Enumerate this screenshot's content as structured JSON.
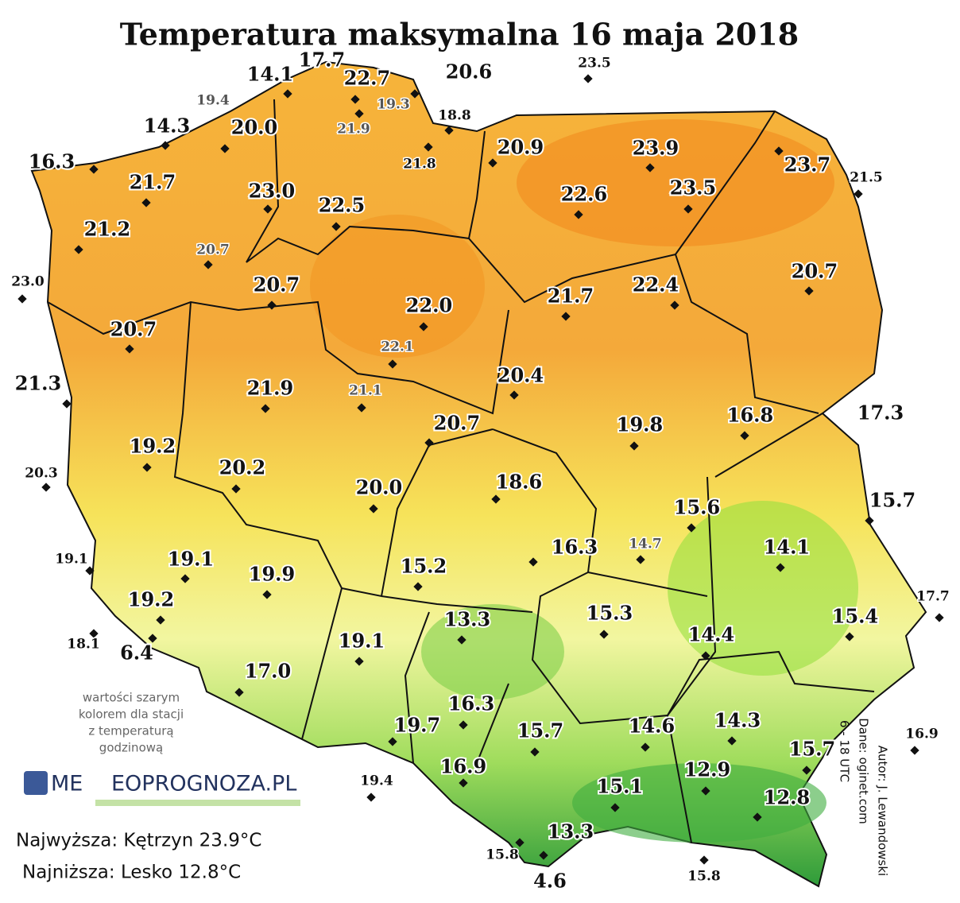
{
  "title": "Temperatura maksymalna 16 maja 2018",
  "stations": [
    {
      "label": "14.1",
      "style": "bold"
    },
    {
      "label": "17.7",
      "style": "bold"
    },
    {
      "label": "22.7",
      "style": "bold"
    },
    {
      "label": "19.3",
      "style": "gray"
    },
    {
      "label": "21.9",
      "style": "gray"
    },
    {
      "label": "20.6",
      "style": "bold"
    },
    {
      "label": "23.5",
      "style": "small"
    },
    {
      "label": "19.4",
      "style": "gray"
    },
    {
      "label": "18.8",
      "style": "small"
    },
    {
      "label": "14.3",
      "style": "bold"
    },
    {
      "label": "20.0",
      "style": "bold"
    },
    {
      "label": "21.8",
      "style": "small"
    },
    {
      "label": "20.9",
      "style": "bold"
    },
    {
      "label": "23.9",
      "style": "bold"
    },
    {
      "label": "23.7",
      "style": "bold"
    },
    {
      "label": "21.5",
      "style": "small"
    },
    {
      "label": "16.3",
      "style": "bold"
    },
    {
      "label": "21.7",
      "style": "bold"
    },
    {
      "label": "23.0",
      "style": "bold"
    },
    {
      "label": "22.5",
      "style": "bold"
    },
    {
      "label": "22.6",
      "style": "bold"
    },
    {
      "label": "23.5",
      "style": "bold"
    },
    {
      "label": "21.2",
      "style": "bold"
    },
    {
      "label": "20.7",
      "style": "gray"
    },
    {
      "label": "23.0",
      "style": "small"
    },
    {
      "label": "20.7",
      "style": "bold"
    },
    {
      "label": "22.4",
      "style": "bold"
    },
    {
      "label": "20.7",
      "style": "bold"
    },
    {
      "label": "22.0",
      "style": "bold"
    },
    {
      "label": "21.7",
      "style": "bold"
    },
    {
      "label": "20.7",
      "style": "bold"
    },
    {
      "label": "22.1",
      "style": "gray"
    },
    {
      "label": "21.3",
      "style": "bold"
    },
    {
      "label": "20.4",
      "style": "bold"
    },
    {
      "label": "21.9",
      "style": "bold"
    },
    {
      "label": "21.1",
      "style": "gray"
    },
    {
      "label": "20.7",
      "style": "bold"
    },
    {
      "label": "19.8",
      "style": "bold"
    },
    {
      "label": "16.8",
      "style": "bold"
    },
    {
      "label": "17.3",
      "style": "bold"
    },
    {
      "label": "19.2",
      "style": "bold"
    },
    {
      "label": "20.3",
      "style": "small"
    },
    {
      "label": "20.2",
      "style": "bold"
    },
    {
      "label": "20.0",
      "style": "bold"
    },
    {
      "label": "18.6",
      "style": "bold"
    },
    {
      "label": "15.7",
      "style": "bold"
    },
    {
      "label": "15.6",
      "style": "bold"
    },
    {
      "label": "16.3",
      "style": "bold"
    },
    {
      "label": "14.7",
      "style": "gray"
    },
    {
      "label": "14.1",
      "style": "bold"
    },
    {
      "label": "19.1",
      "style": "small"
    },
    {
      "label": "19.1",
      "style": "bold"
    },
    {
      "label": "19.9",
      "style": "bold"
    },
    {
      "label": "15.2",
      "style": "bold"
    },
    {
      "label": "17.7",
      "style": "small"
    },
    {
      "label": "13.3",
      "style": "bold"
    },
    {
      "label": "15.3",
      "style": "bold"
    },
    {
      "label": "15.4",
      "style": "bold"
    },
    {
      "label": "19.2",
      "style": "bold"
    },
    {
      "label": "14.4",
      "style": "bold"
    },
    {
      "label": "18.1",
      "style": "small"
    },
    {
      "label": "6.4",
      "style": "bold"
    },
    {
      "label": "19.1",
      "style": "bold"
    },
    {
      "label": "17.0",
      "style": "bold"
    },
    {
      "label": "16.3",
      "style": "bold"
    },
    {
      "label": "19.7",
      "style": "bold"
    },
    {
      "label": "15.7",
      "style": "bold"
    },
    {
      "label": "14.6",
      "style": "bold"
    },
    {
      "label": "14.3",
      "style": "bold"
    },
    {
      "label": "15.7",
      "style": "bold"
    },
    {
      "label": "16.9",
      "style": "small"
    },
    {
      "label": "16.9",
      "style": "bold"
    },
    {
      "label": "19.4",
      "style": "small"
    },
    {
      "label": "12.9",
      "style": "bold"
    },
    {
      "label": "15.1",
      "style": "bold"
    },
    {
      "label": "12.8",
      "style": "bold"
    },
    {
      "label": "13.3",
      "style": "bold"
    },
    {
      "label": "15.8",
      "style": "small"
    },
    {
      "label": "15.8",
      "style": "small"
    },
    {
      "label": "4.6",
      "style": "bold"
    }
  ],
  "note": [
    "wartości szarym",
    "kolorem dla stacji",
    "z temperaturą",
    "godzinową"
  ],
  "logo": [
    "ME",
    "EOPROGNOZA.PL"
  ],
  "extremes": [
    "Najwyższa: Kętrzyn 23.9°C",
    "Najniższa: Lesko 12.8°C"
  ],
  "credits": [
    "Autor: J. Lewandowski",
    "Dane: oginet.com",
    "6 - 18 UTC"
  ]
}
